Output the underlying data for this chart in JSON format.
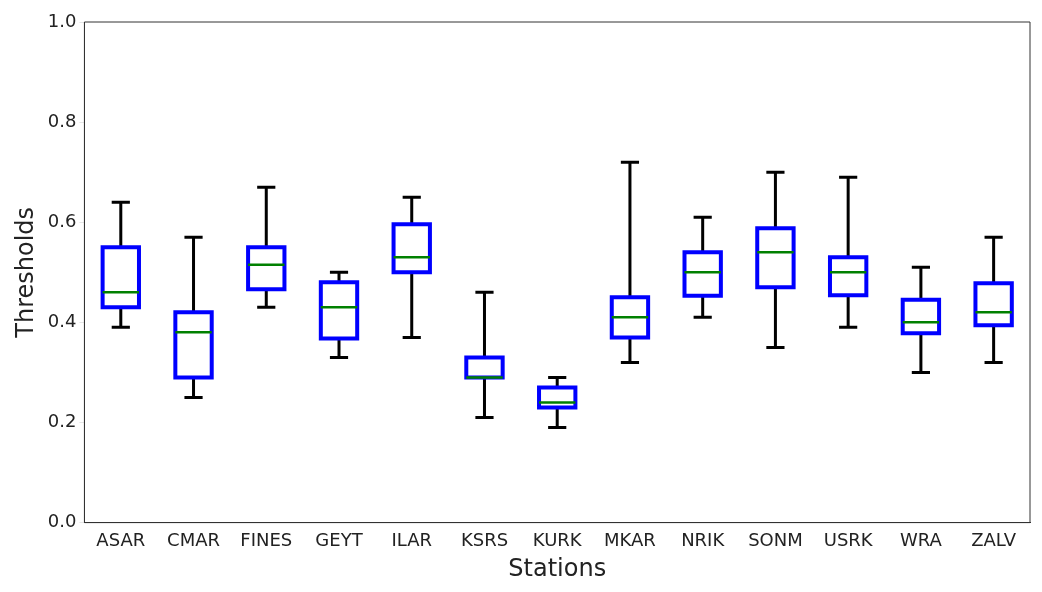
{
  "chart_data": {
    "type": "box",
    "xlabel": "Stations",
    "ylabel": "Thresholds",
    "categories": [
      "ASAR",
      "CMAR",
      "FINES",
      "GEYT",
      "ILAR",
      "KSRS",
      "KURK",
      "MKAR",
      "NRIK",
      "SONM",
      "USRK",
      "WRA",
      "ZALV"
    ],
    "series": [
      {
        "color": "#0000ff",
        "boxes": [
          {
            "low": 0.39,
            "q1": 0.43,
            "median": 0.46,
            "q3": 0.55,
            "high": 0.64
          },
          {
            "low": 0.25,
            "q1": 0.29,
            "median": 0.38,
            "q3": 0.42,
            "high": 0.57
          },
          {
            "low": 0.43,
            "q1": 0.466,
            "median": 0.515,
            "q3": 0.55,
            "high": 0.67
          },
          {
            "low": 0.33,
            "q1": 0.368,
            "median": 0.43,
            "q3": 0.48,
            "high": 0.5
          },
          {
            "low": 0.37,
            "q1": 0.5,
            "median": 0.53,
            "q3": 0.596,
            "high": 0.65
          },
          {
            "low": 0.21,
            "q1": 0.29,
            "median": 0.29,
            "q3": 0.33,
            "high": 0.46
          },
          {
            "low": 0.19,
            "q1": 0.23,
            "median": 0.24,
            "q3": 0.27,
            "high": 0.29
          },
          {
            "low": 0.32,
            "q1": 0.37,
            "median": 0.41,
            "q3": 0.45,
            "high": 0.72
          },
          {
            "low": 0.41,
            "q1": 0.453,
            "median": 0.5,
            "q3": 0.54,
            "high": 0.61
          },
          {
            "low": 0.35,
            "q1": 0.47,
            "median": 0.54,
            "q3": 0.588,
            "high": 0.7
          },
          {
            "low": 0.39,
            "q1": 0.454,
            "median": 0.5,
            "q3": 0.53,
            "high": 0.69
          },
          {
            "low": 0.3,
            "q1": 0.378,
            "median": 0.4,
            "q3": 0.445,
            "high": 0.51
          },
          {
            "low": 0.32,
            "q1": 0.394,
            "median": 0.42,
            "q3": 0.478,
            "high": 0.57
          }
        ]
      }
    ],
    "ylim": [
      0,
      1
    ],
    "yticks": [
      {
        "value": 0,
        "label": "0.0"
      },
      {
        "value": 0.2,
        "label": "0.2"
      },
      {
        "value": 0.4,
        "label": "0.4"
      },
      {
        "value": 0.6,
        "label": "0.6"
      },
      {
        "value": 0.8,
        "label": "0.8"
      },
      {
        "value": 1,
        "label": "1.0"
      }
    ],
    "grid": false,
    "legend": false
  }
}
